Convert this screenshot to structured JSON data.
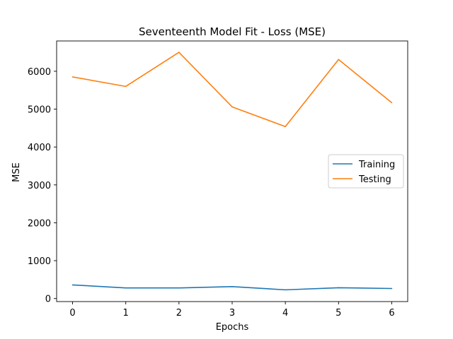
{
  "chart_data": {
    "type": "line",
    "title": "Seventeenth Model Fit - Loss (MSE)",
    "xlabel": "Epochs",
    "ylabel": "MSE",
    "x": [
      0,
      1,
      2,
      3,
      4,
      5,
      6
    ],
    "xlim": [
      -0.3,
      6.3
    ],
    "ylim": [
      -80,
      6800
    ],
    "xticks": [
      0,
      1,
      2,
      3,
      4,
      5,
      6
    ],
    "yticks": [
      0,
      1000,
      2000,
      3000,
      4000,
      5000,
      6000
    ],
    "grid": false,
    "legend_position": "center-right",
    "series": [
      {
        "name": "Training",
        "color": "#1f77b4",
        "values": [
          360,
          280,
          280,
          315,
          230,
          285,
          265
        ]
      },
      {
        "name": "Testing",
        "color": "#ff7f0e",
        "values": [
          5850,
          5600,
          6500,
          5060,
          4540,
          6310,
          5170
        ]
      }
    ]
  }
}
